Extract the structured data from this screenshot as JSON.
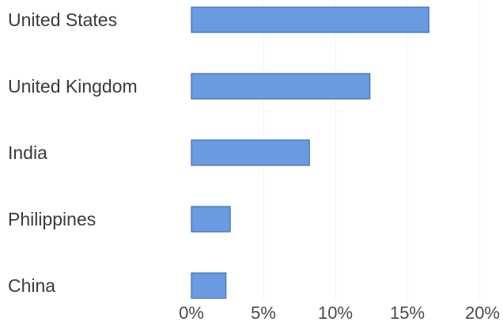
{
  "chart_data": {
    "type": "bar",
    "orientation": "horizontal",
    "categories": [
      "United States",
      "United Kingdom",
      "India",
      "Philippines",
      "China"
    ],
    "values": [
      16.5,
      12.4,
      8.2,
      2.7,
      2.4
    ],
    "x_ticks": [
      "0%",
      "5%",
      "10%",
      "15%",
      "20%"
    ],
    "xlim": [
      0,
      20
    ],
    "title": "",
    "xlabel": "",
    "ylabel": "",
    "grid": false,
    "legend": "none",
    "bar_color": "#6a9be0"
  }
}
